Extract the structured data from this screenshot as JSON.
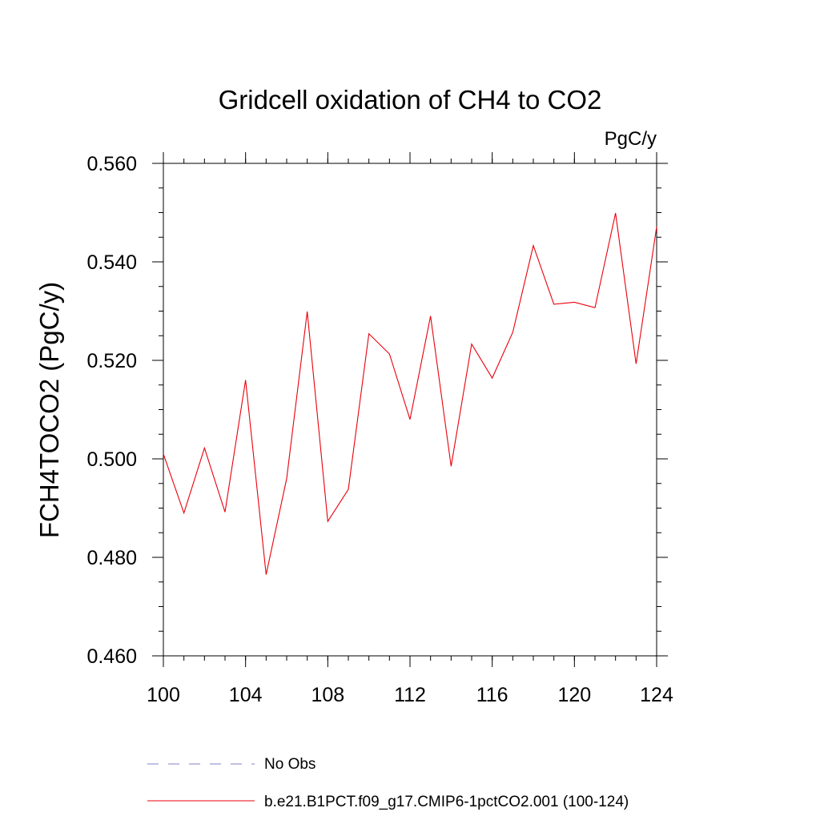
{
  "chart_data": {
    "type": "line",
    "title": "Gridcell oxidation of CH4 to CO2",
    "units": "PgC/y",
    "ylabel": "FCH4TOCO2  (PgC/y)",
    "xlabel": "",
    "xlim": [
      100,
      124
    ],
    "ylim": [
      0.46,
      0.56
    ],
    "xticks": [
      100,
      104,
      108,
      112,
      116,
      120,
      124
    ],
    "xtick_labels": [
      "100",
      "104",
      "108",
      "112",
      "116",
      "120",
      "124"
    ],
    "yticks": [
      0.46,
      0.48,
      0.5,
      0.52,
      0.54,
      0.56
    ],
    "ytick_labels": [
      "0.460",
      "0.480",
      "0.500",
      "0.520",
      "0.540",
      "0.560"
    ],
    "x_minor_step": 1,
    "y_minor_step": 0.005,
    "series": [
      {
        "name": "b.e21.B1PCT.f09_g17.CMIP6-1pctCO2.001 (100-124)",
        "color": "#e8000b",
        "x": [
          100,
          101,
          102,
          103,
          104,
          105,
          106,
          107,
          108,
          109,
          110,
          111,
          112,
          113,
          114,
          115,
          116,
          117,
          118,
          119,
          120,
          121,
          122,
          123,
          124
        ],
        "values": [
          0.501,
          0.489,
          0.5022,
          0.4892,
          0.516,
          0.4765,
          0.496,
          0.5299,
          0.4873,
          0.4938,
          0.5254,
          0.5213,
          0.508,
          0.529,
          0.4985,
          0.5233,
          0.5164,
          0.5257,
          0.5433,
          0.5314,
          0.5318,
          0.5307,
          0.5499,
          0.5193,
          0.5471
        ]
      }
    ],
    "legend": [
      {
        "label": "No Obs",
        "style": "dashed",
        "color": "#8080c8"
      },
      {
        "label": "b.e21.B1PCT.f09_g17.CMIP6-1pctCO2.001 (100-124)",
        "style": "solid",
        "color": "#e8000b"
      }
    ],
    "legend_position": "bottom-left"
  }
}
